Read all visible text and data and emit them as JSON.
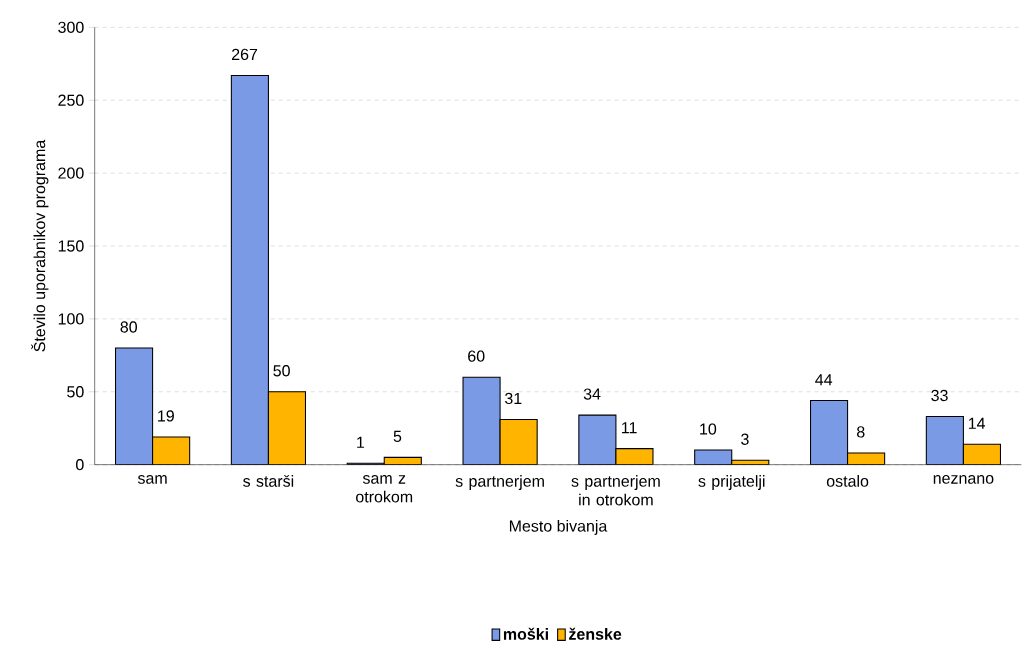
{
  "chart_data": {
    "type": "bar",
    "xlabel": "Mesto bivanja",
    "ylabel": "Število uporabnikov programa",
    "categories": [
      "sam",
      "s starši",
      "sam z otrokom",
      "s partnerjem",
      "s partnerjem in otrokom",
      "s prijatelji",
      "ostalo",
      "neznano"
    ],
    "series": [
      {
        "name": "moški",
        "color": "#7b9ae6",
        "values": [
          80,
          267,
          1,
          60,
          34,
          10,
          44,
          33
        ]
      },
      {
        "name": "ženske",
        "color": "#ffb400",
        "values": [
          19,
          50,
          5,
          31,
          11,
          3,
          8,
          14
        ]
      }
    ],
    "ylim": [
      0,
      300
    ],
    "yticks": [
      0,
      50,
      100,
      150,
      200,
      250,
      300
    ],
    "grid": "y",
    "legend": "bottom",
    "data_labels": true
  }
}
